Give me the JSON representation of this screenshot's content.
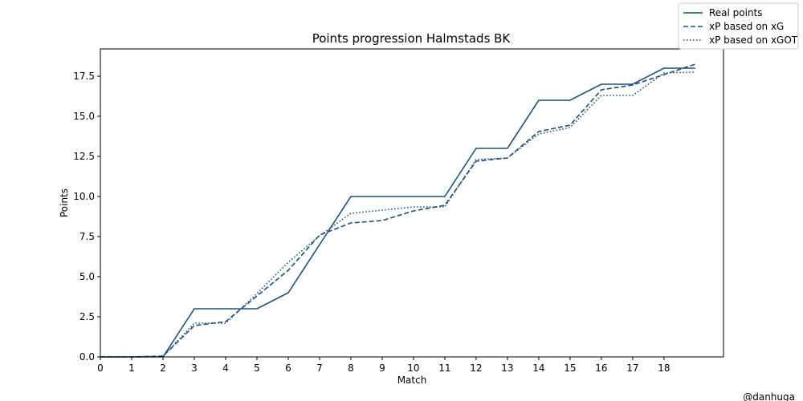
{
  "chart_data": {
    "type": "line",
    "title": "Points progression Halmstads BK",
    "xlabel": "Match",
    "ylabel": "Points",
    "xlim": [
      0,
      19.9
    ],
    "ylim": [
      0,
      19.2
    ],
    "xticks": [
      0,
      1,
      2,
      3,
      4,
      5,
      6,
      7,
      8,
      9,
      10,
      11,
      12,
      13,
      14,
      15,
      16,
      17,
      18
    ],
    "yticks": [
      0,
      2.5,
      5,
      7.5,
      10,
      12.5,
      15,
      17.5
    ],
    "ytick_labels": [
      "0.0",
      "2.5",
      "5.0",
      "7.5",
      "10.0",
      "12.5",
      "15.0",
      "17.5"
    ],
    "grid": false,
    "legend_position": "top-right",
    "line_color": "#1f4e79",
    "x": [
      0,
      1,
      2,
      3,
      4,
      5,
      6,
      7,
      8,
      9,
      10,
      11,
      12,
      13,
      14,
      15,
      16,
      17,
      18,
      19
    ],
    "series": [
      {
        "name": "Real points",
        "style": "solid",
        "values": [
          0,
          0,
          0,
          3,
          3,
          3,
          4,
          7,
          10,
          10,
          10,
          10,
          13,
          13,
          16,
          16,
          17,
          17,
          18,
          18
        ]
      },
      {
        "name": "xP based on xG",
        "style": "dashed",
        "values": [
          0,
          0,
          0.05,
          1.95,
          2.2,
          3.8,
          5.4,
          7.6,
          8.35,
          8.5,
          9.1,
          9.45,
          12.2,
          12.4,
          14.05,
          14.45,
          16.65,
          16.95,
          17.6,
          18.25
        ]
      },
      {
        "name": "xP based on xGOT",
        "style": "dotted",
        "values": [
          0,
          0,
          0.05,
          2.1,
          2.1,
          3.95,
          5.9,
          7.55,
          8.95,
          9.15,
          9.35,
          9.35,
          12.3,
          12.4,
          13.9,
          14.3,
          16.3,
          16.3,
          17.7,
          17.75
        ]
      }
    ]
  },
  "watermark": "@danhuga"
}
